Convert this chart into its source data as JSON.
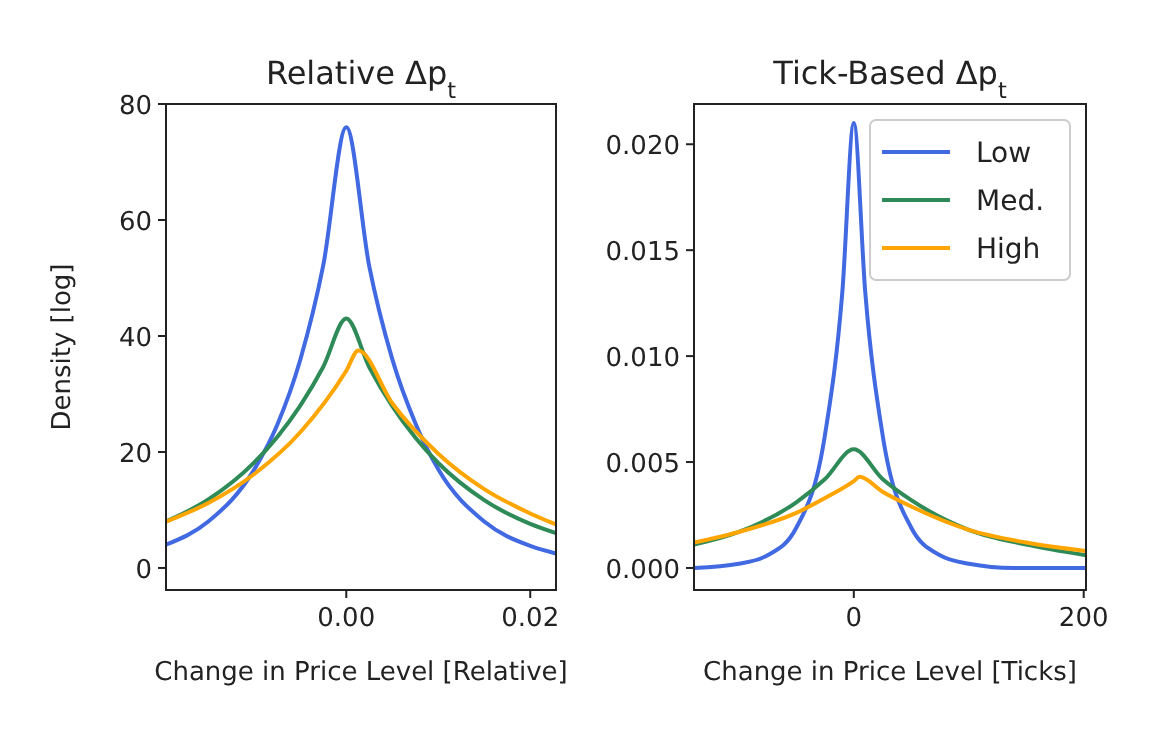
{
  "chart_data": [
    {
      "type": "line",
      "title": "Relative Δp$_{t}$",
      "xlabel": "Change in Price Level [Relative]",
      "ylabel": "Density [log]",
      "xlim": [
        -0.0196,
        0.0228
      ],
      "ylim": [
        -3.8,
        80
      ],
      "xticks": [
        {
          "value": 0,
          "label": "0.00"
        },
        {
          "value": 0.02,
          "label": "0.02"
        }
      ],
      "yticks": [
        0,
        20,
        40,
        60,
        80
      ],
      "series": [
        {
          "color": "#4169e1",
          "x": [
            -0.0196,
            -0.015,
            -0.01,
            -0.0075,
            -0.005,
            -0.0025,
            0,
            0.0025,
            0.005,
            0.0075,
            0.01,
            0.015,
            0.02,
            0.0228
          ],
          "values": [
            4,
            8,
            17,
            24.7,
            35.9,
            52.2,
            76,
            52,
            36,
            25,
            17,
            8,
            3.8,
            2.5
          ]
        },
        {
          "color": "#2e8b57",
          "x": [
            -0.0196,
            -0.015,
            -0.01,
            -0.0075,
            -0.005,
            -0.0025,
            0,
            0.0025,
            0.005,
            0.0075,
            0.01,
            0.015,
            0.02,
            0.0228
          ],
          "values": [
            8,
            11.8,
            18.2,
            22.6,
            28,
            34.7,
            43,
            34.6,
            27.9,
            22.5,
            18.1,
            11.7,
            7.6,
            6
          ]
        },
        {
          "color": "#ffa500",
          "x": [
            -0.0196,
            -0.015,
            -0.01,
            -0.005,
            0,
            0.0013,
            0.005,
            0.01,
            0.015,
            0.02,
            0.0228
          ],
          "values": [
            8,
            11.2,
            16.2,
            23.4,
            34,
            37.5,
            28.4,
            19.7,
            13.6,
            9.4,
            7.5
          ]
        }
      ]
    },
    {
      "type": "line",
      "title": "Tick-Based Δp$_{t}$",
      "xlabel": "Change in Price Level [Ticks]",
      "xlim": [
        -139,
        202
      ],
      "ylim": [
        -0.00104,
        0.0219
      ],
      "xticks": [
        0,
        200
      ],
      "yticks": [
        {
          "value": 0,
          "label": "0.000"
        },
        {
          "value": 0.005,
          "label": "0.005"
        },
        {
          "value": 0.01,
          "label": "0.010"
        },
        {
          "value": 0.015,
          "label": "0.015"
        },
        {
          "value": 0.02,
          "label": "0.020"
        }
      ],
      "legend": "top right",
      "series": [
        {
          "name": "Low",
          "color": "#4169e1",
          "x": [
            -139,
            -100,
            -75,
            -50,
            -25,
            -10,
            0,
            10,
            25,
            50,
            75,
            100,
            139,
            202
          ],
          "values": [
            0,
            0.0002,
            0.0006,
            0.0019,
            0.0063,
            0.013,
            0.021,
            0.013,
            0.0063,
            0.0019,
            0.0006,
            0.0002,
            0,
            0
          ]
        },
        {
          "name": "Med.",
          "color": "#2e8b57",
          "x": [
            -139,
            -100,
            -50,
            -25,
            0,
            25,
            50,
            100,
            150,
            202
          ],
          "values": [
            0.0011,
            0.0017,
            0.0031,
            0.0042,
            0.0056,
            0.0042,
            0.0032,
            0.0018,
            0.0011,
            0.0006
          ]
        },
        {
          "name": "High",
          "color": "#ffa500",
          "x": [
            -139,
            -100,
            -50,
            -25,
            0,
            5,
            25,
            50,
            100,
            150,
            202
          ],
          "values": [
            0.0012,
            0.0017,
            0.0026,
            0.0033,
            0.0041,
            0.0043,
            0.0036,
            0.0029,
            0.0018,
            0.0012,
            0.0008
          ]
        }
      ]
    }
  ]
}
